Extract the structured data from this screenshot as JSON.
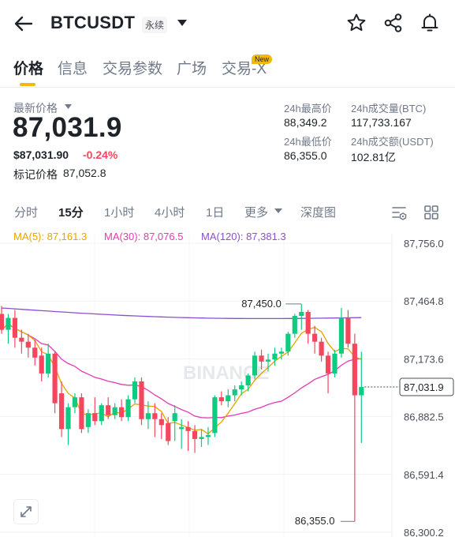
{
  "header": {
    "symbol": "BTCUSDT",
    "contract_type": "永续"
  },
  "tabs": [
    {
      "label": "价格"
    },
    {
      "label": "信息"
    },
    {
      "label": "交易参数"
    },
    {
      "label": "广场"
    },
    {
      "label": "交易-X"
    }
  ],
  "new_badge": "New",
  "price": {
    "label": "最新价格",
    "last": "87,031.9",
    "usd": "$87,031.90",
    "change": "-0.24%",
    "mark_label": "标记价格",
    "mark_value": "87,052.8"
  },
  "stats": {
    "high_label": "24h最高价",
    "high": "88,349.2",
    "vol_btc_label": "24h成交量(BTC)",
    "vol_btc": "117,733.167",
    "low_label": "24h最低价",
    "low": "86,355.0",
    "vol_usdt_label": "24h成交额(USDT)",
    "vol_usdt": "102.81亿"
  },
  "intervals": [
    {
      "label": "分时"
    },
    {
      "label": "15分"
    },
    {
      "label": "1小时"
    },
    {
      "label": "4小时"
    },
    {
      "label": "1日"
    },
    {
      "label": "更多"
    },
    {
      "label": "深度图"
    }
  ],
  "ma_legend": [
    {
      "label": "MA(5): 87,161.3",
      "color": "#e6a400"
    },
    {
      "label": "MA(30): 87,076.5",
      "color": "#e33ab5"
    },
    {
      "label": "MA(120): 87,381.3",
      "color": "#8a4fd0"
    }
  ],
  "colors": {
    "up": "#0ecb81",
    "down": "#f6465d",
    "accent": "#f0b90b"
  },
  "chart_data": {
    "type": "candlestick",
    "y_ticks": [
      "87,756.0",
      "87,464.8",
      "87,173.6",
      "86,882.5",
      "86,591.4",
      "86,300.2"
    ],
    "y_range": [
      86300.2,
      87756.0
    ],
    "current_price": "87,031.9",
    "current_value": 87031.9,
    "high_marker": {
      "label": "87,450.0",
      "value": 87450.0
    },
    "low_marker": {
      "label": "86,355.0",
      "value": 86355.0
    },
    "watermark": "BINANCE",
    "candles": [
      {
        "o": 87400,
        "h": 87440,
        "c": 87320,
        "l": 87300
      },
      {
        "o": 87320,
        "h": 87400,
        "c": 87380,
        "l": 87250
      },
      {
        "o": 87380,
        "h": 87420,
        "c": 87280,
        "l": 87230
      },
      {
        "o": 87280,
        "h": 87320,
        "c": 87260,
        "l": 87200
      },
      {
        "o": 87260,
        "h": 87300,
        "c": 87230,
        "l": 87180
      },
      {
        "o": 87230,
        "h": 87270,
        "c": 87180,
        "l": 87140
      },
      {
        "o": 87190,
        "h": 87230,
        "c": 87100,
        "l": 87060
      },
      {
        "o": 87100,
        "h": 87250,
        "c": 87200,
        "l": 87080
      },
      {
        "o": 87200,
        "h": 87210,
        "c": 86950,
        "l": 86900
      },
      {
        "o": 87000,
        "h": 87060,
        "c": 86820,
        "l": 86780
      },
      {
        "o": 86820,
        "h": 86950,
        "c": 86930,
        "l": 86740
      },
      {
        "o": 86930,
        "h": 87000,
        "c": 86980,
        "l": 86900
      },
      {
        "o": 86980,
        "h": 87000,
        "c": 86820,
        "l": 86800
      },
      {
        "o": 86830,
        "h": 86920,
        "c": 86900,
        "l": 86800
      },
      {
        "o": 86900,
        "h": 86980,
        "c": 86860,
        "l": 86840
      },
      {
        "o": 86860,
        "h": 86950,
        "c": 86940,
        "l": 86840
      },
      {
        "o": 86940,
        "h": 86980,
        "c": 86890,
        "l": 86870
      },
      {
        "o": 86890,
        "h": 86950,
        "c": 86930,
        "l": 86870
      },
      {
        "o": 86930,
        "h": 86970,
        "c": 86880,
        "l": 86860
      },
      {
        "o": 86880,
        "h": 86990,
        "c": 86970,
        "l": 86860
      },
      {
        "o": 86970,
        "h": 87080,
        "c": 87060,
        "l": 86950
      },
      {
        "o": 87060,
        "h": 87080,
        "c": 86870,
        "l": 86840
      },
      {
        "o": 86870,
        "h": 86960,
        "c": 86900,
        "l": 86820
      },
      {
        "o": 86900,
        "h": 86950,
        "c": 86870,
        "l": 86780
      },
      {
        "o": 86870,
        "h": 86900,
        "c": 86840,
        "l": 86770
      },
      {
        "o": 86850,
        "h": 86880,
        "c": 86760,
        "l": 86740
      },
      {
        "o": 86860,
        "h": 86940,
        "c": 86900,
        "l": 86760
      },
      {
        "o": 86820,
        "h": 86870,
        "c": 86830,
        "l": 86720
      },
      {
        "o": 86830,
        "h": 86860,
        "c": 86810,
        "l": 86710
      },
      {
        "o": 86810,
        "h": 86840,
        "c": 86770,
        "l": 86700
      },
      {
        "o": 86770,
        "h": 86820,
        "c": 86780,
        "l": 86730
      },
      {
        "o": 86780,
        "h": 86830,
        "c": 86790,
        "l": 86740
      },
      {
        "o": 86800,
        "h": 86990,
        "c": 86980,
        "l": 86780
      },
      {
        "o": 86980,
        "h": 87010,
        "c": 86960,
        "l": 86940
      },
      {
        "o": 86960,
        "h": 87020,
        "c": 86990,
        "l": 86930
      },
      {
        "o": 86990,
        "h": 87040,
        "c": 87020,
        "l": 86960
      },
      {
        "o": 87020,
        "h": 87060,
        "c": 87040,
        "l": 86990
      },
      {
        "o": 87040,
        "h": 87100,
        "c": 87090,
        "l": 87010
      },
      {
        "o": 87090,
        "h": 87210,
        "c": 87190,
        "l": 87070
      },
      {
        "o": 87190,
        "h": 87220,
        "c": 87160,
        "l": 87120
      },
      {
        "o": 87160,
        "h": 87200,
        "c": 87170,
        "l": 87110
      },
      {
        "o": 87170,
        "h": 87230,
        "c": 87200,
        "l": 87140
      },
      {
        "o": 87200,
        "h": 87230,
        "c": 87210,
        "l": 87170
      },
      {
        "o": 87210,
        "h": 87310,
        "c": 87300,
        "l": 87190
      },
      {
        "o": 87300,
        "h": 87400,
        "c": 87390,
        "l": 87280
      },
      {
        "o": 87390,
        "h": 87450,
        "c": 87410,
        "l": 87320
      },
      {
        "o": 87410,
        "h": 87420,
        "c": 87300,
        "l": 87250
      },
      {
        "o": 87300,
        "h": 87340,
        "c": 87260,
        "l": 87200
      },
      {
        "o": 87260,
        "h": 87280,
        "c": 87190,
        "l": 87160
      },
      {
        "o": 87190,
        "h": 87210,
        "c": 87100,
        "l": 87000
      },
      {
        "o": 87100,
        "h": 87220,
        "c": 87200,
        "l": 87080
      },
      {
        "o": 87200,
        "h": 87430,
        "c": 87380,
        "l": 87180
      },
      {
        "o": 87380,
        "h": 87420,
        "c": 87250,
        "l": 87230
      },
      {
        "o": 87250,
        "h": 87300,
        "c": 86990,
        "l": 86355
      },
      {
        "o": 86990,
        "h": 87210,
        "c": 87031.9,
        "l": 86750
      }
    ]
  }
}
